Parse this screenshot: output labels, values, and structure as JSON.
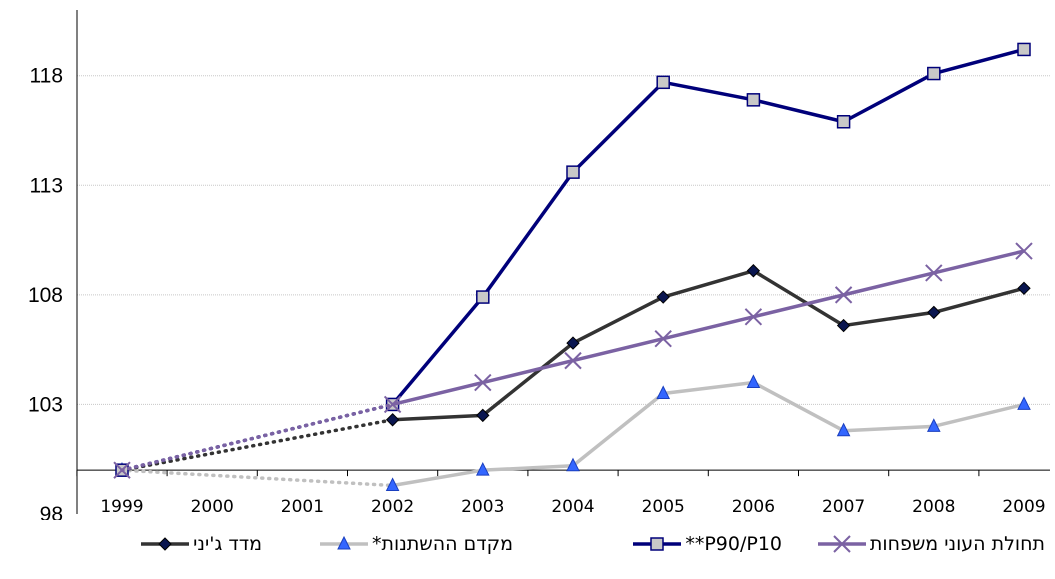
{
  "chart_data": {
    "type": "line",
    "title": "",
    "xlabel": "",
    "ylabel": "",
    "ylim": [
      98,
      121
    ],
    "yticks": [
      98,
      103,
      108,
      113,
      118
    ],
    "x": [
      "1999",
      "2000",
      "2001",
      "2002",
      "2003",
      "2004",
      "2005",
      "2006",
      "2007",
      "2008",
      "2009"
    ],
    "baseline": 100,
    "grid": "horizontal",
    "legend_position": "bottom",
    "series": [
      {
        "name": "מדד ג'יני",
        "color": "#333333",
        "marker": "diamond",
        "marker_fill": "#0a1650",
        "values": [
          100,
          null,
          null,
          102.3,
          102.5,
          105.8,
          107.9,
          109.1,
          106.6,
          107.2,
          108.3
        ],
        "dotted_span": [
          0,
          3
        ]
      },
      {
        "name": "מקדם ההשתנות*",
        "color": "#c0c0c0",
        "marker": "triangle",
        "marker_fill": "#3366ff",
        "values": [
          100,
          null,
          null,
          99.3,
          100,
          100.2,
          103.5,
          104,
          101.8,
          102,
          103
        ],
        "dotted_span": [
          0,
          3
        ]
      },
      {
        "name": "P90/P10**",
        "color": "#00007a",
        "marker": "square",
        "marker_fill": "#c8c8c8",
        "values": [
          100,
          null,
          null,
          103,
          107.9,
          113.6,
          117.7,
          116.9,
          115.9,
          118.1,
          119.2
        ],
        "dotted_span": [
          0,
          3
        ]
      },
      {
        "name": "תחולת העוני משפחות",
        "color": "#7b62a3",
        "marker": "x",
        "marker_fill": "#7b62a3",
        "values": [
          100,
          null,
          null,
          103,
          104,
          105,
          106,
          107,
          108,
          109,
          110
        ],
        "dotted_span": [
          0,
          3
        ]
      }
    ]
  }
}
